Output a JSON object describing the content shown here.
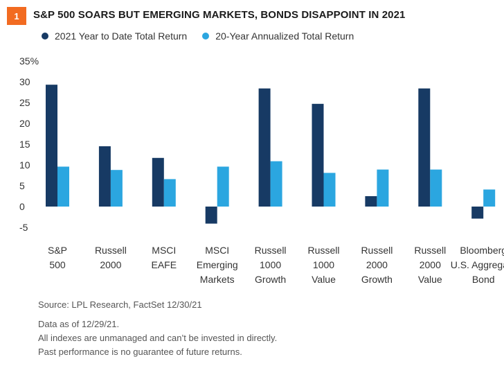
{
  "figure": {
    "number": "1",
    "title": "S&P 500 SOARS BUT EMERGING MARKETS, BONDS DISAPPOINT IN 2021"
  },
  "colors": {
    "badge": "#f26b21",
    "series_dark": "#173a64",
    "series_light": "#2ba6e0"
  },
  "chart_data": {
    "type": "bar",
    "categories": [
      [
        "S&P",
        "500"
      ],
      [
        "Russell",
        "2000"
      ],
      [
        "MSCI",
        "EAFE"
      ],
      [
        "MSCI",
        "Emerging",
        "Markets"
      ],
      [
        "Russell",
        "1000",
        "Growth"
      ],
      [
        "Russell",
        "1000",
        "Value"
      ],
      [
        "Russell",
        "2000",
        "Growth"
      ],
      [
        "Russell",
        "2000",
        "Value"
      ],
      [
        "Bloomberg",
        "U.S. Aggregate",
        "Bond"
      ]
    ],
    "series": [
      {
        "name": "2021 Year to Date Total Return",
        "values": [
          29.3,
          14.5,
          11.7,
          -4.1,
          28.4,
          24.7,
          2.5,
          28.4,
          -2.9
        ]
      },
      {
        "name": "20-Year Annualized Total Return",
        "values": [
          9.6,
          8.8,
          6.6,
          9.6,
          10.9,
          8.1,
          8.9,
          8.9,
          4.1
        ]
      }
    ],
    "y_ticks": [
      "35%",
      "30",
      "25",
      "20",
      "15",
      "10",
      "5",
      "0",
      "-5"
    ],
    "ylim": [
      -5,
      35
    ],
    "grid": false,
    "legend_position": "top-left"
  },
  "footer": {
    "source": "Source: LPL Research, FactSet 12/30/21",
    "note1": "Data as of 12/29/21.",
    "note2": "All indexes are unmanaged and can’t be invested in directly.",
    "note3": "Past performance is no guarantee of future returns."
  }
}
